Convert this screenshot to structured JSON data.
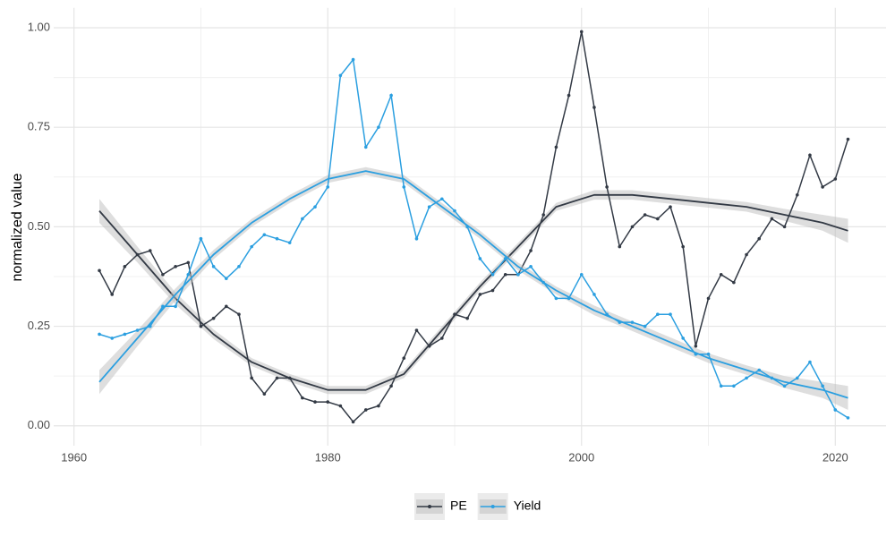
{
  "chart_data": {
    "type": "line",
    "y_label": "normalized value",
    "legend": "bottom",
    "grid": true,
    "xlim": [
      1958.4,
      2024
    ],
    "ylim": [
      -0.05,
      1.05
    ],
    "xticks": [
      1960,
      1980,
      2000,
      2020
    ],
    "x_minor_ticks": [
      1970,
      1990,
      2010
    ],
    "yticks": [
      {
        "value": 0,
        "label": "0.00"
      },
      {
        "value": 0.25,
        "label": "0.25"
      },
      {
        "value": 0.5,
        "label": "0.50"
      },
      {
        "value": 0.75,
        "label": "0.75"
      },
      {
        "value": 1,
        "label": "1.00"
      }
    ],
    "y_minor_ticks": [
      0.125,
      0.375,
      0.625,
      0.875
    ],
    "x": [
      1962,
      1963,
      1964,
      1965,
      1966,
      1967,
      1968,
      1969,
      1970,
      1971,
      1972,
      1973,
      1974,
      1975,
      1976,
      1977,
      1978,
      1979,
      1980,
      1981,
      1982,
      1983,
      1984,
      1985,
      1986,
      1987,
      1988,
      1989,
      1990,
      1991,
      1992,
      1993,
      1994,
      1995,
      1996,
      1997,
      1998,
      1999,
      2000,
      2001,
      2002,
      2003,
      2004,
      2005,
      2006,
      2007,
      2008,
      2009,
      2010,
      2011,
      2012,
      2013,
      2014,
      2015,
      2016,
      2017,
      2018,
      2019,
      2020,
      2021
    ],
    "smooth_x": [
      1962,
      1965,
      1968,
      1971,
      1974,
      1977,
      1980,
      1983,
      1986,
      1989,
      1992,
      1995,
      1998,
      2001,
      2004,
      2007,
      2010,
      2013,
      2016,
      2019,
      2021
    ],
    "band_color": "#bdbdbd",
    "series": [
      {
        "name": "PE",
        "color": "#333a45",
        "values": [
          0.39,
          0.33,
          0.4,
          0.43,
          0.44,
          0.38,
          0.4,
          0.41,
          0.25,
          0.27,
          0.3,
          0.28,
          0.12,
          0.08,
          0.12,
          0.12,
          0.07,
          0.06,
          0.06,
          0.05,
          0.01,
          0.04,
          0.05,
          0.1,
          0.17,
          0.24,
          0.2,
          0.22,
          0.28,
          0.27,
          0.33,
          0.34,
          0.38,
          0.38,
          0.44,
          0.53,
          0.7,
          0.83,
          0.99,
          0.8,
          0.6,
          0.45,
          0.5,
          0.53,
          0.52,
          0.55,
          0.45,
          0.2,
          0.32,
          0.38,
          0.36,
          0.43,
          0.47,
          0.52,
          0.5,
          0.58,
          0.68,
          0.6,
          0.62,
          0.72
        ],
        "smooth": [
          0.54,
          0.43,
          0.32,
          0.23,
          0.16,
          0.12,
          0.09,
          0.09,
          0.13,
          0.24,
          0.35,
          0.45,
          0.55,
          0.58,
          0.58,
          0.57,
          0.56,
          0.55,
          0.53,
          0.51,
          0.49
        ],
        "smooth_se": [
          0.03,
          0.02,
          0.015,
          0.012,
          0.01,
          0.01,
          0.01,
          0.01,
          0.01,
          0.01,
          0.01,
          0.01,
          0.01,
          0.012,
          0.012,
          0.012,
          0.012,
          0.012,
          0.015,
          0.02,
          0.03
        ]
      },
      {
        "name": "Yield",
        "color": "#2b9fe0",
        "values": [
          0.23,
          0.22,
          0.23,
          0.24,
          0.25,
          0.3,
          0.3,
          0.38,
          0.47,
          0.4,
          0.37,
          0.4,
          0.45,
          0.48,
          0.47,
          0.46,
          0.52,
          0.55,
          0.6,
          0.88,
          0.92,
          0.7,
          0.75,
          0.83,
          0.6,
          0.47,
          0.55,
          0.57,
          0.54,
          0.5,
          0.42,
          0.38,
          0.42,
          0.38,
          0.4,
          0.36,
          0.32,
          0.32,
          0.38,
          0.33,
          0.28,
          0.26,
          0.26,
          0.25,
          0.28,
          0.28,
          0.22,
          0.18,
          0.18,
          0.1,
          0.1,
          0.12,
          0.14,
          0.12,
          0.1,
          0.12,
          0.16,
          0.1,
          0.04,
          0.02
        ],
        "smooth": [
          0.11,
          0.22,
          0.33,
          0.43,
          0.51,
          0.57,
          0.62,
          0.64,
          0.62,
          0.55,
          0.48,
          0.4,
          0.34,
          0.29,
          0.25,
          0.21,
          0.17,
          0.14,
          0.11,
          0.09,
          0.07
        ],
        "smooth_se": [
          0.03,
          0.02,
          0.015,
          0.012,
          0.01,
          0.01,
          0.01,
          0.01,
          0.01,
          0.01,
          0.01,
          0.01,
          0.01,
          0.012,
          0.012,
          0.012,
          0.012,
          0.012,
          0.015,
          0.02,
          0.03
        ]
      }
    ]
  }
}
